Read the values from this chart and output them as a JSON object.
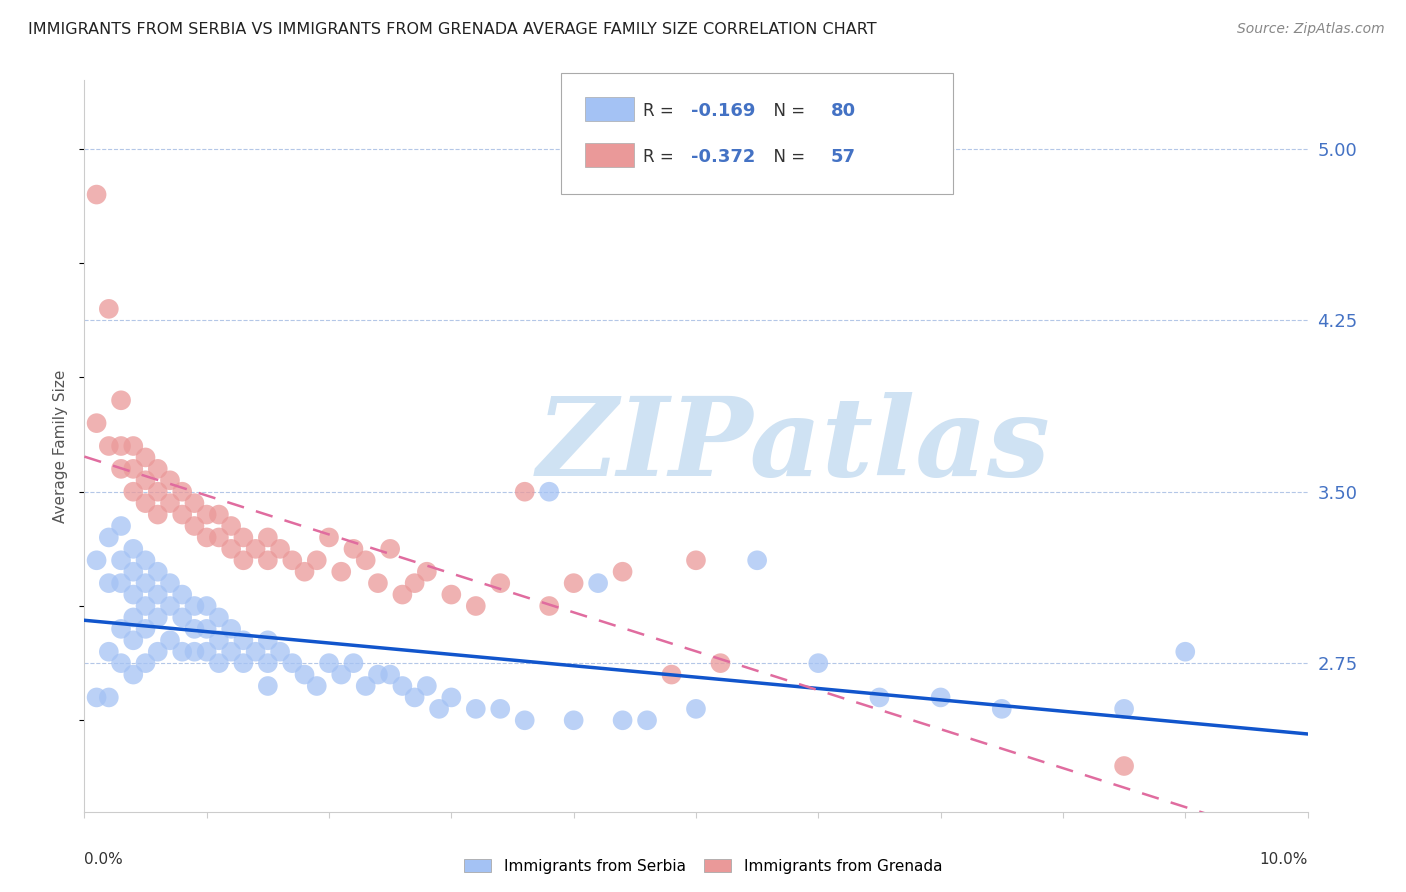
{
  "title": "IMMIGRANTS FROM SERBIA VS IMMIGRANTS FROM GRENADA AVERAGE FAMILY SIZE CORRELATION CHART",
  "source": "Source: ZipAtlas.com",
  "ylabel": "Average Family Size",
  "right_yticks": [
    2.75,
    3.5,
    4.25,
    5.0
  ],
  "serbia_R": -0.169,
  "serbia_N": 80,
  "grenada_R": -0.372,
  "grenada_N": 57,
  "serbia_color": "#a4c2f4",
  "grenada_color": "#ea9999",
  "serbia_line_color": "#1155cc",
  "grenada_line_color": "#e06c9f",
  "watermark_text": "ZIPatlas",
  "serbia_x": [
    0.001,
    0.001,
    0.002,
    0.002,
    0.002,
    0.002,
    0.003,
    0.003,
    0.003,
    0.003,
    0.003,
    0.004,
    0.004,
    0.004,
    0.004,
    0.004,
    0.004,
    0.005,
    0.005,
    0.005,
    0.005,
    0.005,
    0.006,
    0.006,
    0.006,
    0.006,
    0.007,
    0.007,
    0.007,
    0.008,
    0.008,
    0.008,
    0.009,
    0.009,
    0.009,
    0.01,
    0.01,
    0.01,
    0.011,
    0.011,
    0.011,
    0.012,
    0.012,
    0.013,
    0.013,
    0.014,
    0.015,
    0.015,
    0.015,
    0.016,
    0.017,
    0.018,
    0.019,
    0.02,
    0.021,
    0.022,
    0.023,
    0.024,
    0.025,
    0.026,
    0.027,
    0.028,
    0.029,
    0.03,
    0.032,
    0.034,
    0.036,
    0.038,
    0.04,
    0.042,
    0.044,
    0.046,
    0.05,
    0.055,
    0.06,
    0.065,
    0.07,
    0.075,
    0.085,
    0.09
  ],
  "serbia_y": [
    3.2,
    2.6,
    3.3,
    3.1,
    2.8,
    2.6,
    3.35,
    3.2,
    3.1,
    2.9,
    2.75,
    3.25,
    3.15,
    3.05,
    2.95,
    2.85,
    2.7,
    3.2,
    3.1,
    3.0,
    2.9,
    2.75,
    3.15,
    3.05,
    2.95,
    2.8,
    3.1,
    3.0,
    2.85,
    3.05,
    2.95,
    2.8,
    3.0,
    2.9,
    2.8,
    3.0,
    2.9,
    2.8,
    2.95,
    2.85,
    2.75,
    2.9,
    2.8,
    2.85,
    2.75,
    2.8,
    2.85,
    2.75,
    2.65,
    2.8,
    2.75,
    2.7,
    2.65,
    2.75,
    2.7,
    2.75,
    2.65,
    2.7,
    2.7,
    2.65,
    2.6,
    2.65,
    2.55,
    2.6,
    2.55,
    2.55,
    2.5,
    3.5,
    2.5,
    3.1,
    2.5,
    2.5,
    2.55,
    3.2,
    2.75,
    2.6,
    2.6,
    2.55,
    2.55,
    2.8
  ],
  "grenada_x": [
    0.001,
    0.001,
    0.002,
    0.002,
    0.003,
    0.003,
    0.003,
    0.004,
    0.004,
    0.004,
    0.005,
    0.005,
    0.005,
    0.006,
    0.006,
    0.006,
    0.007,
    0.007,
    0.008,
    0.008,
    0.009,
    0.009,
    0.01,
    0.01,
    0.011,
    0.011,
    0.012,
    0.012,
    0.013,
    0.013,
    0.014,
    0.015,
    0.015,
    0.016,
    0.017,
    0.018,
    0.019,
    0.02,
    0.021,
    0.022,
    0.023,
    0.024,
    0.025,
    0.026,
    0.027,
    0.028,
    0.03,
    0.032,
    0.034,
    0.036,
    0.038,
    0.04,
    0.044,
    0.048,
    0.05,
    0.052,
    0.085
  ],
  "grenada_y": [
    4.8,
    3.8,
    4.3,
    3.7,
    3.9,
    3.7,
    3.6,
    3.7,
    3.6,
    3.5,
    3.65,
    3.55,
    3.45,
    3.6,
    3.5,
    3.4,
    3.55,
    3.45,
    3.5,
    3.4,
    3.45,
    3.35,
    3.4,
    3.3,
    3.4,
    3.3,
    3.35,
    3.25,
    3.3,
    3.2,
    3.25,
    3.3,
    3.2,
    3.25,
    3.2,
    3.15,
    3.2,
    3.3,
    3.15,
    3.25,
    3.2,
    3.1,
    3.25,
    3.05,
    3.1,
    3.15,
    3.05,
    3.0,
    3.1,
    3.5,
    3.0,
    3.1,
    3.15,
    2.7,
    3.2,
    2.75,
    2.3
  ],
  "xmin": 0.0,
  "xmax": 0.1,
  "ymin": 2.1,
  "ymax": 5.3,
  "background_color": "#ffffff",
  "grid_color": "#d9d9d9",
  "right_axis_color": "#4472c4",
  "watermark_color": "#cfe2f3"
}
